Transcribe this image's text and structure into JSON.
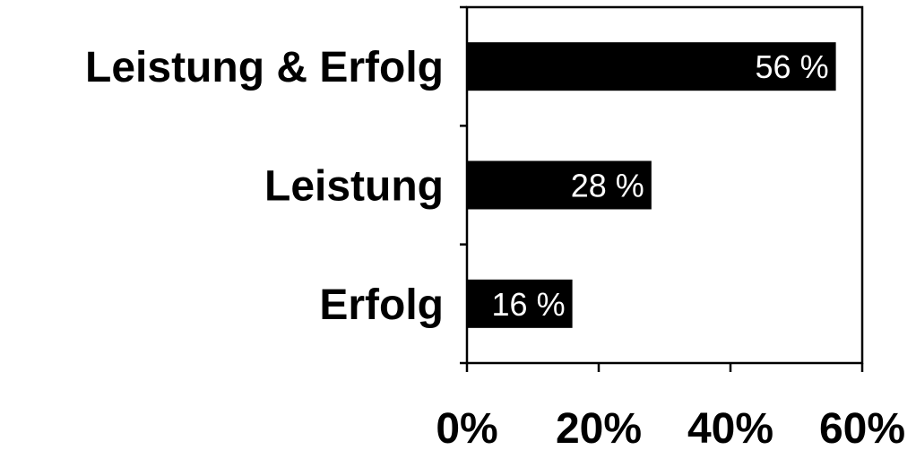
{
  "chart_data": {
    "type": "bar",
    "orientation": "horizontal",
    "title": "",
    "xlabel": "",
    "ylabel": "",
    "categories": [
      "Leistung & Erfolg",
      "Leistung",
      "Erfolg"
    ],
    "values": [
      56,
      28,
      16
    ],
    "data_labels": [
      "56 %",
      "28 %",
      "16 %"
    ],
    "xlim": [
      0,
      60
    ],
    "x_ticks": [
      0,
      20,
      40,
      60
    ],
    "x_tick_labels": [
      "0%",
      "20%",
      "40%",
      "60%"
    ],
    "grid": false,
    "legend": "none",
    "colors": {
      "bar": "#000000",
      "data_label": "#ffffff",
      "axis": "#000000",
      "background": "#ffffff"
    }
  }
}
